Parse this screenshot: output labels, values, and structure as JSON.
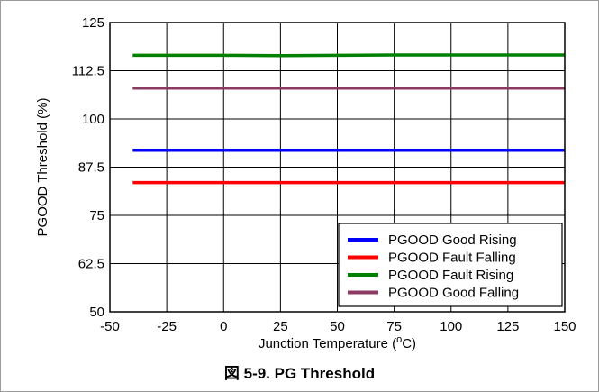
{
  "caption": "図 5-9. PG Threshold",
  "chart_data": {
    "type": "line",
    "title": "",
    "xlabel": "Junction Temperature (",
    "xlabel_sup": "o",
    "xlabel_suffix": "C)",
    "ylabel": "PGOOD Threshold (%)",
    "xlim": [
      -50,
      150
    ],
    "ylim": [
      50,
      125
    ],
    "xticks": [
      -50,
      -25,
      0,
      25,
      50,
      75,
      100,
      125,
      150
    ],
    "xtick_labels": [
      "-50",
      "-25",
      "0",
      "25",
      "50",
      "75",
      "100",
      "125",
      "150"
    ],
    "yticks": [
      50,
      62.5,
      75,
      87.5,
      100,
      112.5,
      125
    ],
    "ytick_labels": [
      "50",
      "62.5",
      "75",
      "87.5",
      "100",
      "112.5",
      "125"
    ],
    "grid": true,
    "legend_position": "bottom-right",
    "x": [
      -40,
      -25,
      0,
      25,
      50,
      75,
      100,
      125,
      150
    ],
    "series": [
      {
        "name": "PGOOD Good Rising",
        "color": "#0000ff",
        "values": [
          91.9,
          91.9,
          91.9,
          91.9,
          91.9,
          91.9,
          91.9,
          91.9,
          91.9
        ]
      },
      {
        "name": "PGOOD Fault Falling",
        "color": "#ff0000",
        "values": [
          83.5,
          83.5,
          83.5,
          83.5,
          83.5,
          83.5,
          83.5,
          83.5,
          83.5
        ]
      },
      {
        "name": "PGOOD Fault Rising",
        "color": "#008000",
        "values": [
          116.5,
          116.5,
          116.5,
          116.4,
          116.5,
          116.6,
          116.6,
          116.6,
          116.6
        ]
      },
      {
        "name": "PGOOD Good Falling",
        "color": "#8b3a62",
        "values": [
          108,
          108,
          108,
          108,
          108,
          108,
          108,
          108,
          108
        ]
      }
    ]
  }
}
